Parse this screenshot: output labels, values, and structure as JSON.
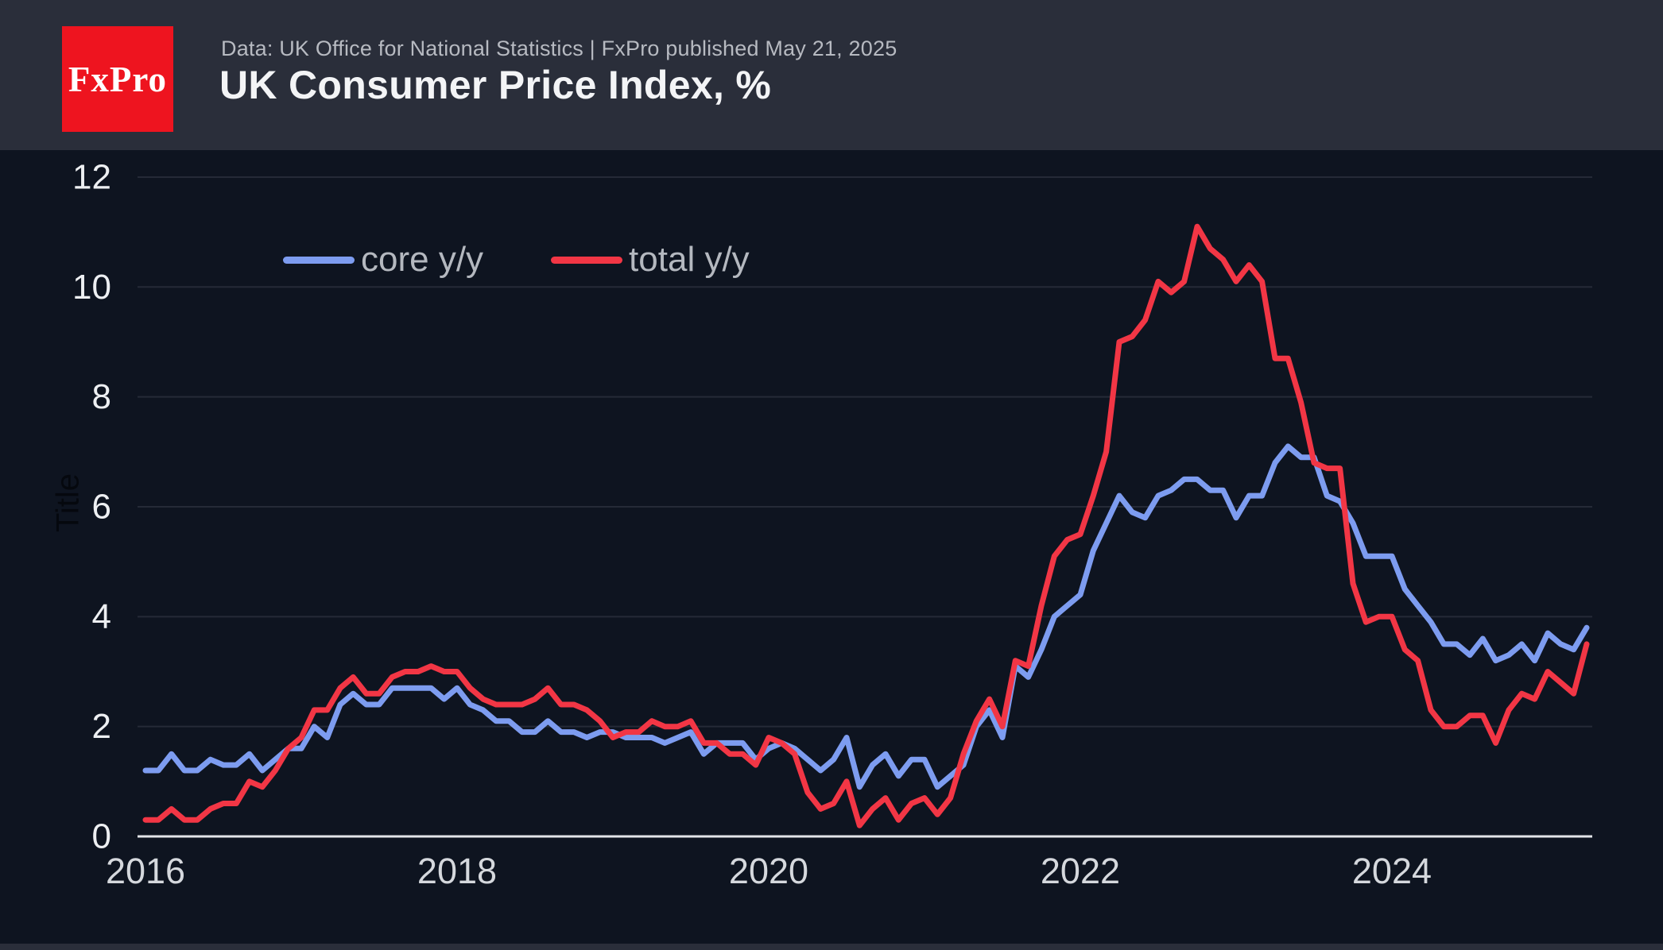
{
  "header": {
    "logo_text": "FxPro",
    "subtitle": "Data: UK Office for National Statistics | FxPro published May 21, 2025",
    "title": "UK Consumer Price Index, %"
  },
  "legend": [
    {
      "label": "core y/y",
      "color": "#7d9cf0"
    },
    {
      "label": "total y/y",
      "color": "#f23645"
    }
  ],
  "colors": {
    "background": "#0e1420",
    "header_band": "#2a2e3a",
    "logo_red": "#ee141f",
    "core_line": "#7d9cf0",
    "total_line": "#f23645",
    "gridline": "#252a37",
    "axis_line": "#e3e5e9"
  },
  "chart_data": {
    "type": "line",
    "title": "UK Consumer Price Index, %",
    "ylabel": "Title",
    "x_interval": "monthly",
    "x_start": "2016-01",
    "x_end": "2025-04",
    "x_tick_labels": [
      "2016",
      "2018",
      "2020",
      "2022",
      "2024"
    ],
    "y_ticks": [
      0,
      2,
      4,
      6,
      8,
      10,
      12
    ],
    "ylim": [
      0,
      12.3
    ],
    "grid": "horizontal",
    "legend_position": "top-left-inside",
    "series": [
      {
        "name": "core y/y",
        "color": "#7d9cf0",
        "values": [
          1.2,
          1.2,
          1.5,
          1.2,
          1.2,
          1.4,
          1.3,
          1.3,
          1.5,
          1.2,
          1.4,
          1.6,
          1.6,
          2.0,
          1.8,
          2.4,
          2.6,
          2.4,
          2.4,
          2.7,
          2.7,
          2.7,
          2.7,
          2.5,
          2.7,
          2.4,
          2.3,
          2.1,
          2.1,
          1.9,
          1.9,
          2.1,
          1.9,
          1.9,
          1.8,
          1.9,
          1.9,
          1.8,
          1.8,
          1.8,
          1.7,
          1.8,
          1.9,
          1.5,
          1.7,
          1.7,
          1.7,
          1.4,
          1.6,
          1.7,
          1.6,
          1.4,
          1.2,
          1.4,
          1.8,
          0.9,
          1.3,
          1.5,
          1.1,
          1.4,
          1.4,
          0.9,
          1.1,
          1.3,
          2.0,
          2.3,
          1.8,
          3.1,
          2.9,
          3.4,
          4.0,
          4.2,
          4.4,
          5.2,
          5.7,
          6.2,
          5.9,
          5.8,
          6.2,
          6.3,
          6.5,
          6.5,
          6.3,
          6.3,
          5.8,
          6.2,
          6.2,
          6.8,
          7.1,
          6.9,
          6.9,
          6.2,
          6.1,
          5.7,
          5.1,
          5.1,
          5.1,
          4.5,
          4.2,
          3.9,
          3.5,
          3.5,
          3.3,
          3.6,
          3.2,
          3.3,
          3.5,
          3.2,
          3.7,
          3.5,
          3.4,
          3.8
        ]
      },
      {
        "name": "total y/y",
        "color": "#f23645",
        "values": [
          0.3,
          0.3,
          0.5,
          0.3,
          0.3,
          0.5,
          0.6,
          0.6,
          1.0,
          0.9,
          1.2,
          1.6,
          1.8,
          2.3,
          2.3,
          2.7,
          2.9,
          2.6,
          2.6,
          2.9,
          3.0,
          3.0,
          3.1,
          3.0,
          3.0,
          2.7,
          2.5,
          2.4,
          2.4,
          2.4,
          2.5,
          2.7,
          2.4,
          2.4,
          2.3,
          2.1,
          1.8,
          1.9,
          1.9,
          2.1,
          2.0,
          2.0,
          2.1,
          1.7,
          1.7,
          1.5,
          1.5,
          1.3,
          1.8,
          1.7,
          1.5,
          0.8,
          0.5,
          0.6,
          1.0,
          0.2,
          0.5,
          0.7,
          0.3,
          0.6,
          0.7,
          0.4,
          0.7,
          1.5,
          2.1,
          2.5,
          2.0,
          3.2,
          3.1,
          4.2,
          5.1,
          5.4,
          5.5,
          6.2,
          7.0,
          9.0,
          9.1,
          9.4,
          10.1,
          9.9,
          10.1,
          11.1,
          10.7,
          10.5,
          10.1,
          10.4,
          10.1,
          8.7,
          8.7,
          7.9,
          6.8,
          6.7,
          6.7,
          4.6,
          3.9,
          4.0,
          4.0,
          3.4,
          3.2,
          2.3,
          2.0,
          2.0,
          2.2,
          2.2,
          1.7,
          2.3,
          2.6,
          2.5,
          3.0,
          2.8,
          2.6,
          3.5
        ]
      }
    ]
  }
}
